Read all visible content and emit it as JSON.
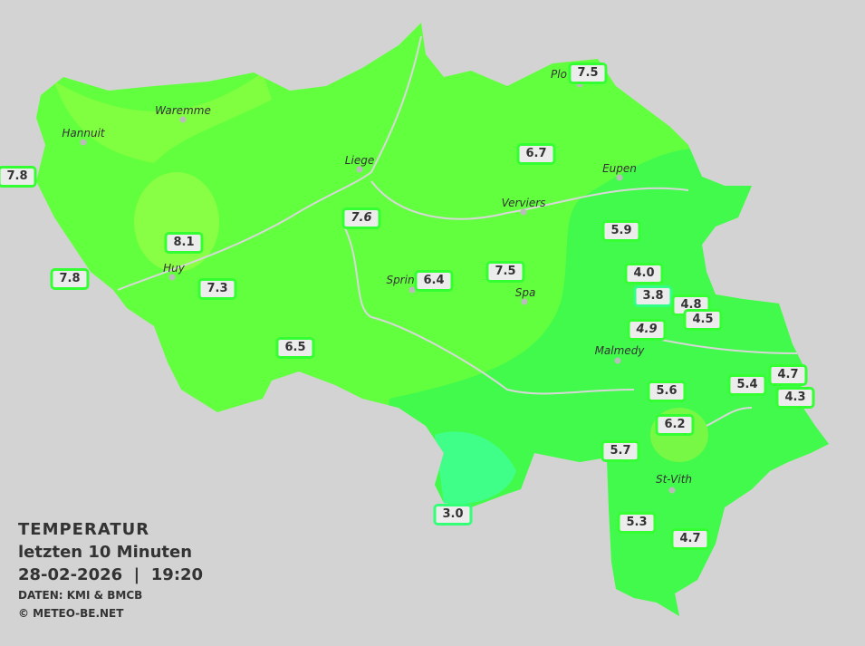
{
  "title": "TEMPERATUR",
  "subtitle": "letzten 10 Minuten",
  "datetime": "28-02-2026  |  19:20",
  "source": "DATEN: KMI & BMCB",
  "copyright": "© METEO-BE.NET",
  "colors": {
    "background": "#d3d3d3",
    "zone_warm": "#88ff44",
    "zone_mid": "#66ff3c",
    "zone_cool": "#40f850",
    "zone_cold": "#40ff88",
    "label_border": "#33ff33"
  },
  "cities": [
    "Waremme",
    "Hannuit",
    "Liege",
    "Eupen",
    "Verviers",
    "Huy",
    "Sprin",
    "Spa",
    "Malmedy",
    "St-Vith",
    "Plo"
  ],
  "stations": [
    {
      "value": "7.8"
    },
    {
      "value": "7.8"
    },
    {
      "value": "8.1"
    },
    {
      "value": "7.3"
    },
    {
      "value": "6.5"
    },
    {
      "value": "7.6"
    },
    {
      "value": "6.4"
    },
    {
      "value": "7.5"
    },
    {
      "value": "6.7"
    },
    {
      "value": "7.5"
    },
    {
      "value": "5.9"
    },
    {
      "value": "4.0"
    },
    {
      "value": "3.8"
    },
    {
      "value": "4.8"
    },
    {
      "value": "4.5"
    },
    {
      "value": "4.9"
    },
    {
      "value": "5.6"
    },
    {
      "value": "5.4"
    },
    {
      "value": "4.7"
    },
    {
      "value": "4.3"
    },
    {
      "value": "6.2"
    },
    {
      "value": "5.7"
    },
    {
      "value": "5.3"
    },
    {
      "value": "4.7"
    },
    {
      "value": "3.0"
    }
  ]
}
